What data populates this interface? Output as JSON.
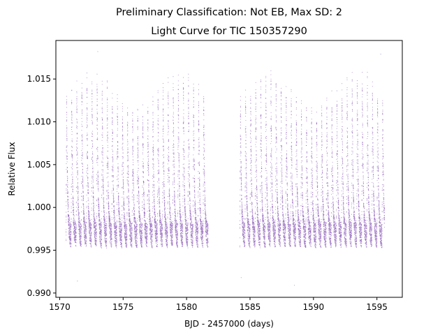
{
  "figure": {
    "suptitle": "Preliminary Classification: Not EB, Max SD: 2"
  },
  "chart_data": {
    "type": "scatter",
    "title": "Light Curve for TIC 150357290",
    "xlabel": "BJD - 2457000 (days)",
    "ylabel": "Relative Flux",
    "xlim": [
      1569.7,
      1597.0
    ],
    "ylim": [
      0.9895,
      1.0195
    ],
    "xticks": [
      1570,
      1575,
      1580,
      1585,
      1590,
      1595
    ],
    "yticks": [
      0.99,
      0.995,
      1.0,
      1.005,
      1.01,
      1.015
    ],
    "xtick_labels": [
      "1570",
      "1575",
      "1580",
      "1585",
      "1590",
      "1595"
    ],
    "ytick_labels": [
      "0.990",
      "0.995",
      "1.000",
      "1.005",
      "1.010",
      "1.015"
    ],
    "grid": false,
    "marker_color": "#9467bd",
    "segments": [
      {
        "x_start": 1570.5,
        "x_end": 1581.7
      },
      {
        "x_start": 1584.2,
        "x_end": 1595.6
      }
    ],
    "pulsation_period_days": 0.4,
    "flux_baseline": 0.997,
    "flux_max": 1.0182,
    "flux_min": 0.9908,
    "highlights": [
      {
        "x": 1573.0,
        "y": 1.0182
      },
      {
        "x": 1595.3,
        "y": 1.0179
      },
      {
        "x": 1588.5,
        "y": 0.9909
      },
      {
        "x": 1571.4,
        "y": 0.9914
      },
      {
        "x": 1584.3,
        "y": 0.9918
      }
    ]
  }
}
